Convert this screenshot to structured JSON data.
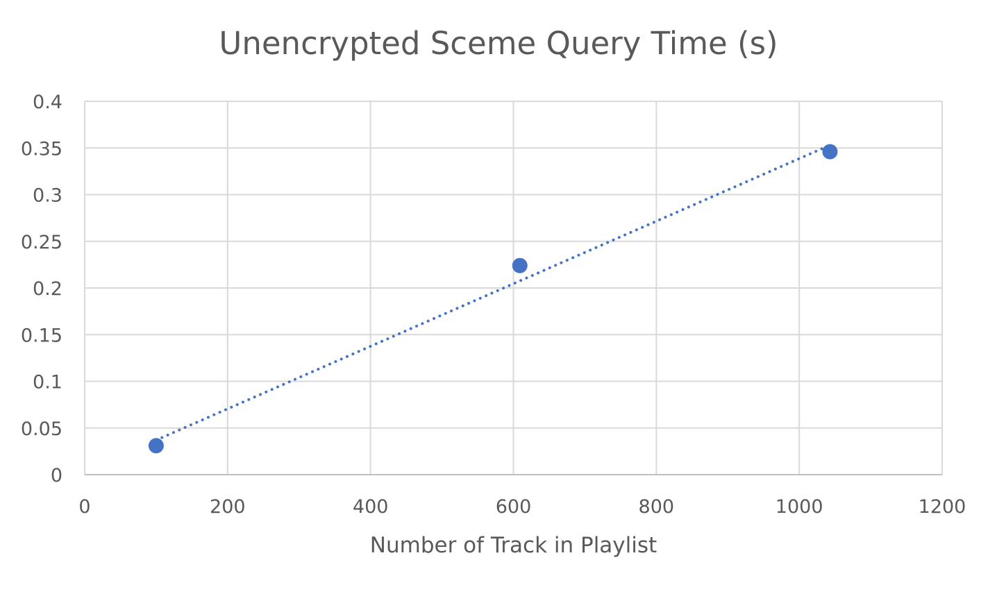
{
  "chart_data": {
    "type": "scatter",
    "title": "Unencrypted Sceme Query Time (s)",
    "xlabel": "Number of Track in Playlist",
    "ylabel": "",
    "xlim": [
      0,
      1200
    ],
    "ylim": [
      0,
      0.4
    ],
    "xticks": [
      0,
      200,
      400,
      600,
      800,
      1000,
      1200
    ],
    "yticks": [
      0,
      0.05,
      0.1,
      0.15,
      0.2,
      0.25,
      0.3,
      0.35,
      0.4
    ],
    "xtick_labels": [
      "0",
      "200",
      "400",
      "600",
      "800",
      "1000",
      "1200"
    ],
    "ytick_labels": [
      "0",
      "0.05",
      "0.1",
      "0.15",
      "0.2",
      "0.25",
      "0.3",
      "0.35",
      "0.4"
    ],
    "grid": true,
    "legend": "none",
    "series": [
      {
        "x": [
          100,
          609,
          1043
        ],
        "y": [
          0.031,
          0.224,
          0.346
        ],
        "color": "#4472C4",
        "marker": "circle",
        "trendline": {
          "type": "linear",
          "style": "dotted",
          "x": [
            100,
            1043
          ],
          "y": [
            0.037,
            0.353
          ]
        }
      }
    ]
  }
}
